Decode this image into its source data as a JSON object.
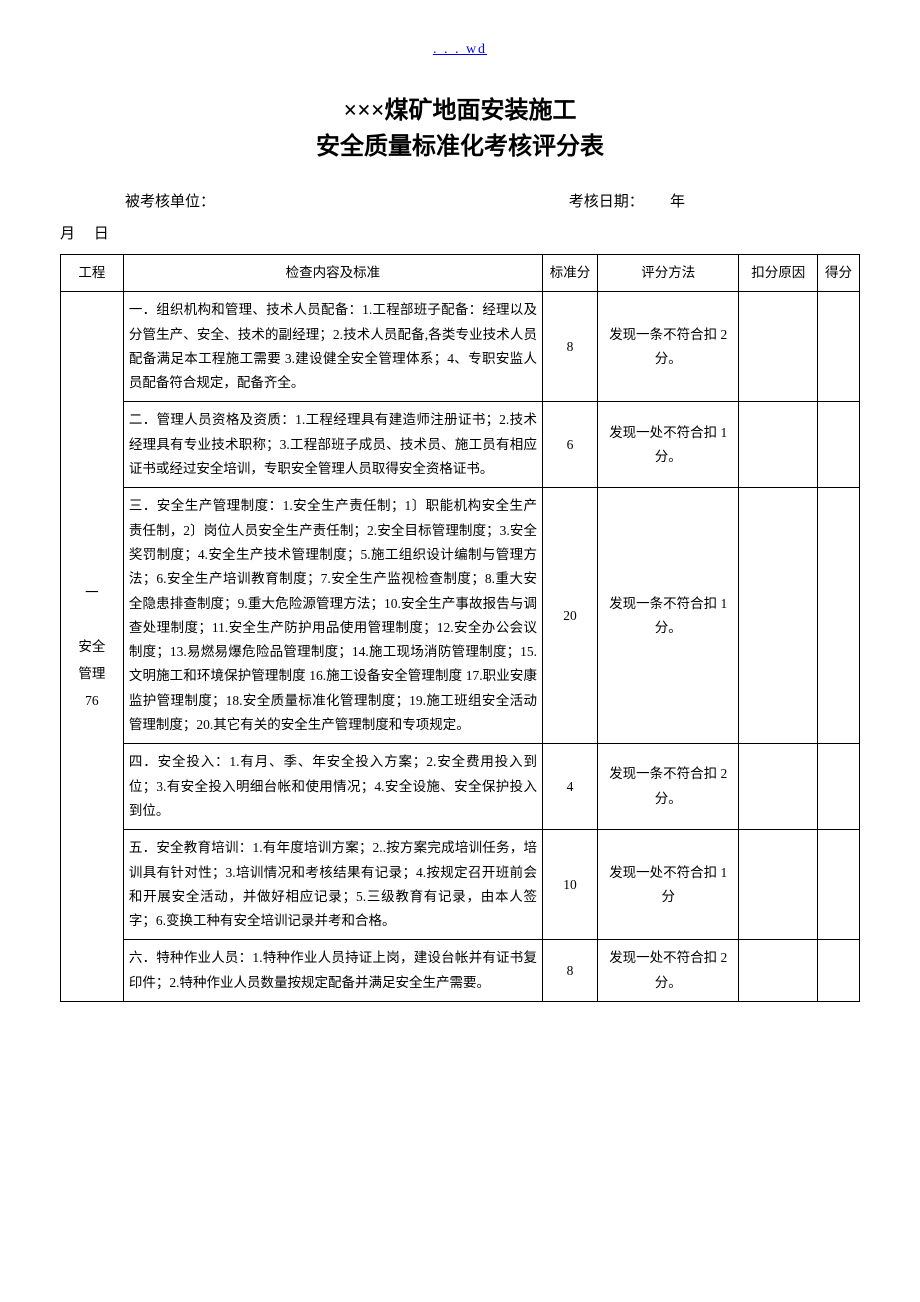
{
  "header": {
    "link_text": ". . . wd"
  },
  "title": {
    "line1": "×××煤矿地面安装施工",
    "line2": "安全质量标准化考核评分表"
  },
  "meta": {
    "unit_label": "被考核单位：",
    "date_label": "考核日期：",
    "year": "年",
    "month": "月",
    "day": "日"
  },
  "table": {
    "headers": {
      "project": "工程",
      "content": "检查内容及标准",
      "standard": "标准分",
      "method": "评分方法",
      "reason": "扣分原因",
      "score": "得分"
    },
    "category": {
      "index": "一",
      "name": "安全管理",
      "total": "76"
    },
    "rows": [
      {
        "content": "一．组织机构和管理、技术人员配备：1.工程部班子配备：经理以及分管生产、安全、技术的副经理；2.技术人员配备,各类专业技术人员配备满足本工程施工需要 3.建设健全安全管理体系；4、专职安监人员配备符合规定，配备齐全。",
        "std": "8",
        "method": "发现一条不符合扣 2 分。"
      },
      {
        "content": "二．管理人员资格及资质：1.工程经理具有建造师注册证书；2.技术经理具有专业技术职称；3.工程部班子成员、技术员、施工员有相应证书或经过安全培训，专职安全管理人员取得安全资格证书。",
        "std": "6",
        "method": "发现一处不符合扣 1 分。"
      },
      {
        "content": "三．安全生产管理制度：1.安全生产责任制；1〕职能机构安全生产责任制，2〕岗位人员安全生产责任制；2.安全目标管理制度；3.安全奖罚制度；4.安全生产技术管理制度；5.施工组织设计编制与管理方法；6.安全生产培训教育制度；7.安全生产监视检查制度；8.重大安全隐患排查制度；9.重大危险源管理方法；10.安全生产事故报告与调查处理制度；11.安全生产防护用品使用管理制度；12.安全办公会议制度；13.易燃易爆危险品管理制度；14.施工现场消防管理制度；15.文明施工和环境保护管理制度 16.施工设备安全管理制度 17.职业安康监护管理制度；18.安全质量标准化管理制度；19.施工班组安全活动管理制度；20.其它有关的安全生产管理制度和专项规定。",
        "std": "20",
        "method": "发现一条不符合扣 1 分。"
      },
      {
        "content": "四．安全投入：1.有月、季、年安全投入方案；2.安全费用投入到位；3.有安全投入明细台帐和使用情况；4.安全设施、安全保护投入到位。",
        "std": "4",
        "method": "发现一条不符合扣 2 分。"
      },
      {
        "content": "五．安全教育培训：1.有年度培训方案；2..按方案完成培训任务，培训具有针对性；3.培训情况和考核结果有记录；4.按规定召开班前会和开展安全活动，并做好相应记录；5.三级教育有记录，由本人签字；6.变换工种有安全培训记录并考和合格。",
        "std": "10",
        "method": "发现一处不符合扣 1 分"
      },
      {
        "content": "六．特种作业人员：1.特种作业人员持证上岗，建设台帐并有证书复印件；2.特种作业人员数量按规定配备并满足安全生产需要。",
        "std": "8",
        "method": "发现一处不符合扣 2 分。"
      }
    ]
  }
}
